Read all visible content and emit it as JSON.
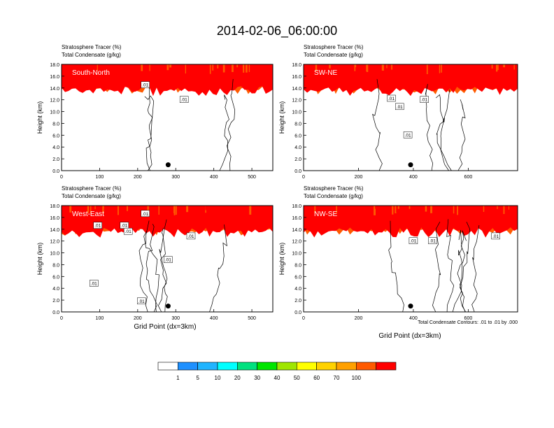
{
  "title": "2014-02-06_06:00:00",
  "panel_header_1": "Stratosphere Tracer   (%)",
  "panel_header_2": "Total Condensate   (g/kg)",
  "ylabel": "Height (km)",
  "xlabel": "Grid Point (dx=3km)",
  "contour_note": "Total Condensate Contours: .01 to .01 by .000",
  "contour_label": ".01",
  "colorbar": {
    "levels": [
      "1",
      "5",
      "10",
      "20",
      "30",
      "40",
      "50",
      "60",
      "70",
      "100"
    ],
    "colors": [
      "#ffffff",
      "#1e90ff",
      "#1fb4ff",
      "#00ffff",
      "#00e17f",
      "#00e600",
      "#9fe600",
      "#ffff00",
      "#ffd200",
      "#ffa000",
      "#ff5a00",
      "#ff0000"
    ]
  },
  "chart_data": [
    {
      "type": "heatmap",
      "label": "South-North",
      "y_ticks": [
        "0.0",
        "2.0",
        "4.0",
        "6.0",
        "8.0",
        "10.0",
        "12.0",
        "14.0",
        "16.0",
        "18.0"
      ],
      "ylim": [
        0,
        18
      ],
      "xlim": [
        0,
        555
      ],
      "x_ticks": [
        0,
        100,
        200,
        300,
        400,
        500
      ],
      "tracer_top_km": 18,
      "tracer_bottom_km": 13.5,
      "marker_x": 280,
      "marker_y": 1.0,
      "contour_labels": [
        {
          "x": 220,
          "y": 14.5
        },
        {
          "x": 322,
          "y": 12.0
        }
      ]
    },
    {
      "type": "heatmap",
      "label": "SW-NE",
      "y_ticks": [
        "0.0",
        "2.0",
        "4.0",
        "6.0",
        "8.0",
        "10.0",
        "12.0",
        "14.0",
        "16.0",
        "18.0"
      ],
      "ylim": [
        0,
        18
      ],
      "xlim": [
        0,
        780
      ],
      "x_ticks": [
        0,
        200,
        400,
        600
      ],
      "tracer_top_km": 18,
      "tracer_bottom_km": 13.5,
      "marker_x": 390,
      "marker_y": 1.0,
      "contour_labels": [
        {
          "x": 320,
          "y": 12.2
        },
        {
          "x": 350,
          "y": 10.8
        },
        {
          "x": 440,
          "y": 12.0
        },
        {
          "x": 380,
          "y": 6.0
        }
      ]
    },
    {
      "type": "heatmap",
      "label": "West-East",
      "y_ticks": [
        "0.0",
        "2.0",
        "4.0",
        "6.0",
        "8.0",
        "10.0",
        "12.0",
        "14.0",
        "16.0",
        "18.0"
      ],
      "ylim": [
        0,
        18
      ],
      "xlim": [
        0,
        555
      ],
      "x_ticks": [
        0,
        100,
        200,
        300,
        400,
        500
      ],
      "tracer_top_km": 18,
      "tracer_bottom_km": 13.5,
      "marker_x": 280,
      "marker_y": 1.0,
      "contour_labels": [
        {
          "x": 95,
          "y": 14.6
        },
        {
          "x": 165,
          "y": 14.6
        },
        {
          "x": 220,
          "y": 16.6
        },
        {
          "x": 340,
          "y": 12.8
        },
        {
          "x": 280,
          "y": 8.8
        },
        {
          "x": 85,
          "y": 4.8
        },
        {
          "x": 210,
          "y": 1.8
        },
        {
          "x": 175,
          "y": 13.6
        }
      ]
    },
    {
      "type": "heatmap",
      "label": "NW-SE",
      "y_ticks": [
        "0.0",
        "2.0",
        "4.0",
        "6.0",
        "8.0",
        "10.0",
        "12.0",
        "14.0",
        "16.0",
        "18.0"
      ],
      "ylim": [
        0,
        18
      ],
      "xlim": [
        0,
        780
      ],
      "x_ticks": [
        0,
        200,
        400,
        600
      ],
      "tracer_top_km": 18,
      "tracer_bottom_km": 13.5,
      "marker_x": 390,
      "marker_y": 1.0,
      "contour_labels": [
        {
          "x": 400,
          "y": 12.0
        },
        {
          "x": 470,
          "y": 12.0
        },
        {
          "x": 700,
          "y": 12.8
        }
      ]
    }
  ]
}
